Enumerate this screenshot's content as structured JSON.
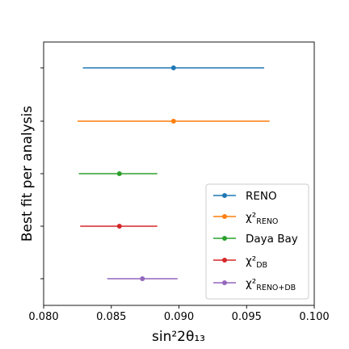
{
  "chart_data": {
    "type": "errorbar",
    "title": "",
    "xlabel": "sin²2θ₁₃",
    "ylabel": "Best fit per analysis",
    "xlim": [
      0.08,
      0.1
    ],
    "x_tick_labels": [
      "0.080",
      "0.085",
      "0.090",
      "0.095",
      "0.100"
    ],
    "x_ticks": [
      0.08,
      0.085,
      0.09,
      0.095,
      0.1
    ],
    "grid": false,
    "legend_position": "lower-right",
    "series": [
      {
        "name": "RENO",
        "name_main": "RENO",
        "name_sub": "",
        "color": "#1f77b4",
        "value": 0.0896,
        "lower": 0.0829,
        "upper": 0.0963
      },
      {
        "name": "χ²RENO",
        "name_main": "χ²",
        "name_sub": "RENO",
        "color": "#ff7f0e",
        "value": 0.0896,
        "lower": 0.0825,
        "upper": 0.0967
      },
      {
        "name": "Daya Bay",
        "name_main": "Daya Bay",
        "name_sub": "",
        "color": "#2ca02c",
        "value": 0.0856,
        "lower": 0.0826,
        "upper": 0.0884
      },
      {
        "name": "χ²DB",
        "name_main": "χ²",
        "name_sub": "DB",
        "color": "#d62728",
        "value": 0.0856,
        "lower": 0.0827,
        "upper": 0.0884
      },
      {
        "name": "χ²RENO+DB",
        "name_main": "χ²",
        "name_sub": "RENO+DB",
        "color": "#9467bd",
        "value": 0.0873,
        "lower": 0.0847,
        "upper": 0.0899
      }
    ]
  }
}
